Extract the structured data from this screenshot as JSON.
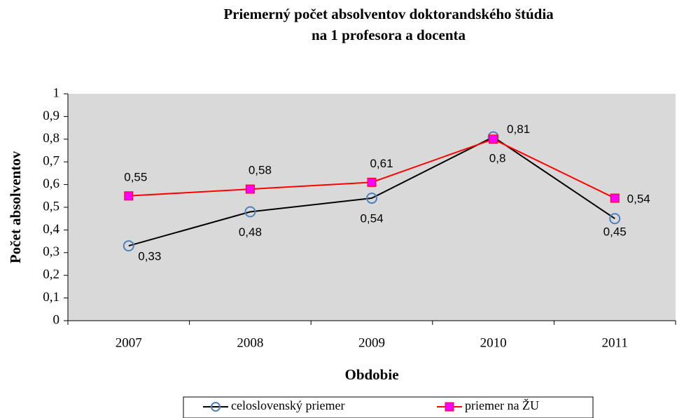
{
  "chart_data": {
    "type": "line",
    "title": [
      "Priemerný počet absolventov doktorandského štúdia",
      "na 1 profesora a docenta"
    ],
    "x_label": "Obdobie",
    "y_label": "Počet absolventov",
    "categories": [
      "2007",
      "2008",
      "2009",
      "2010",
      "2011"
    ],
    "series": [
      {
        "name": "celoslovenský priemer",
        "color": "#000000",
        "marker": "circle",
        "marker_color": "#4f81bd",
        "values": [
          0.33,
          0.48,
          0.54,
          0.81,
          0.45
        ],
        "value_labels": [
          "0,33",
          "0,48",
          "0,54",
          "0,81",
          "0,45"
        ]
      },
      {
        "name": "priemer na ŽU",
        "color": "#ff0000",
        "marker": "square",
        "marker_color": "#ff00ff",
        "values": [
          0.55,
          0.58,
          0.61,
          0.8,
          0.54
        ],
        "value_labels": [
          "0,55",
          "0,58",
          "0,61",
          "0,8",
          "0,54"
        ]
      }
    ],
    "ylim": [
      0,
      1
    ],
    "yticks": [
      0,
      {
        "value": 0.1,
        "label": "0,1"
      },
      {
        "value": 0.2,
        "label": "0,2"
      },
      {
        "value": 0.3,
        "label": "0,3"
      },
      {
        "value": 0.4,
        "label": "0,4"
      },
      {
        "value": 0.5,
        "label": "0,5"
      },
      {
        "value": 0.6,
        "label": "0,6"
      },
      {
        "value": 0.7,
        "label": "0,7"
      },
      {
        "value": 0.8,
        "label": "0,8"
      },
      {
        "value": 0.9,
        "label": "0,9"
      },
      1
    ],
    "grid": false,
    "plot_background": "#d9d9d9",
    "legend": "bottom"
  }
}
